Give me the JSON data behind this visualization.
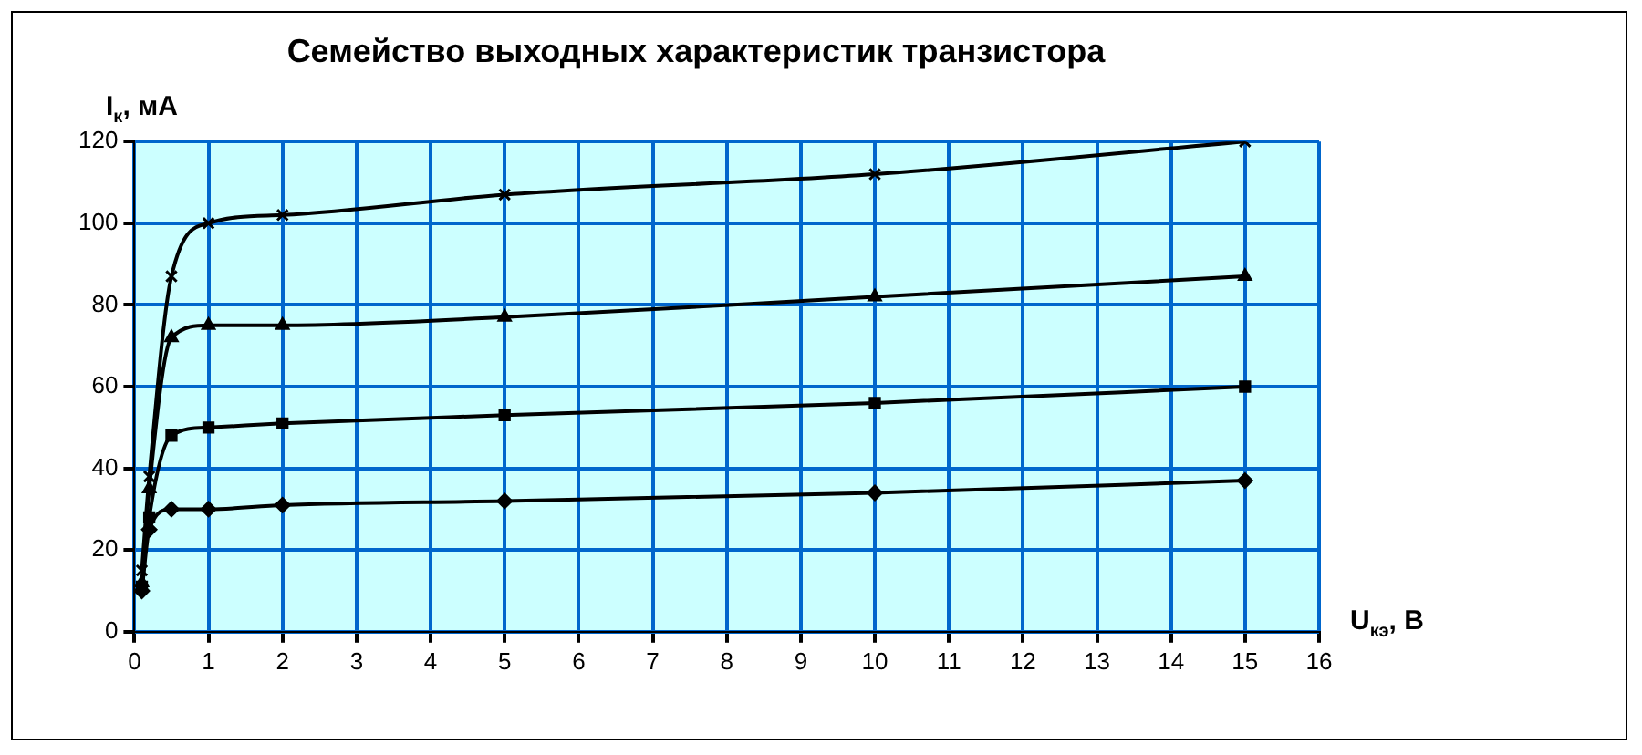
{
  "chart_data": {
    "type": "line",
    "title": "Семейство выходных характеристик транзистора",
    "xlabel": "U$_{кэ}$, В",
    "ylabel": "I$_{к}$, мА",
    "x": [
      0.1,
      0.2,
      0.5,
      1,
      2,
      5,
      10,
      15
    ],
    "xlim": [
      0,
      16
    ],
    "xticks": [
      0,
      1,
      2,
      3,
      4,
      5,
      6,
      7,
      8,
      9,
      10,
      11,
      12,
      13,
      14,
      15,
      16
    ],
    "ylim": [
      0,
      120
    ],
    "yticks": [
      0,
      20,
      40,
      60,
      80,
      100,
      120
    ],
    "grid": true,
    "legend": false,
    "line_style": "solid",
    "series": [
      {
        "color": "#000000",
        "marker": "diamond",
        "values": [
          10,
          25,
          30,
          30,
          31,
          32,
          34,
          37
        ]
      },
      {
        "color": "#000000",
        "marker": "square",
        "values": [
          11,
          28,
          48,
          50,
          51,
          53,
          56,
          60
        ]
      },
      {
        "color": "#000000",
        "marker": "triangle",
        "values": [
          12,
          35,
          72,
          75,
          75,
          77,
          82,
          87
        ]
      },
      {
        "color": "#000000",
        "marker": "cross",
        "values": [
          15,
          38,
          87,
          100,
          102,
          107,
          112,
          120
        ]
      }
    ]
  }
}
